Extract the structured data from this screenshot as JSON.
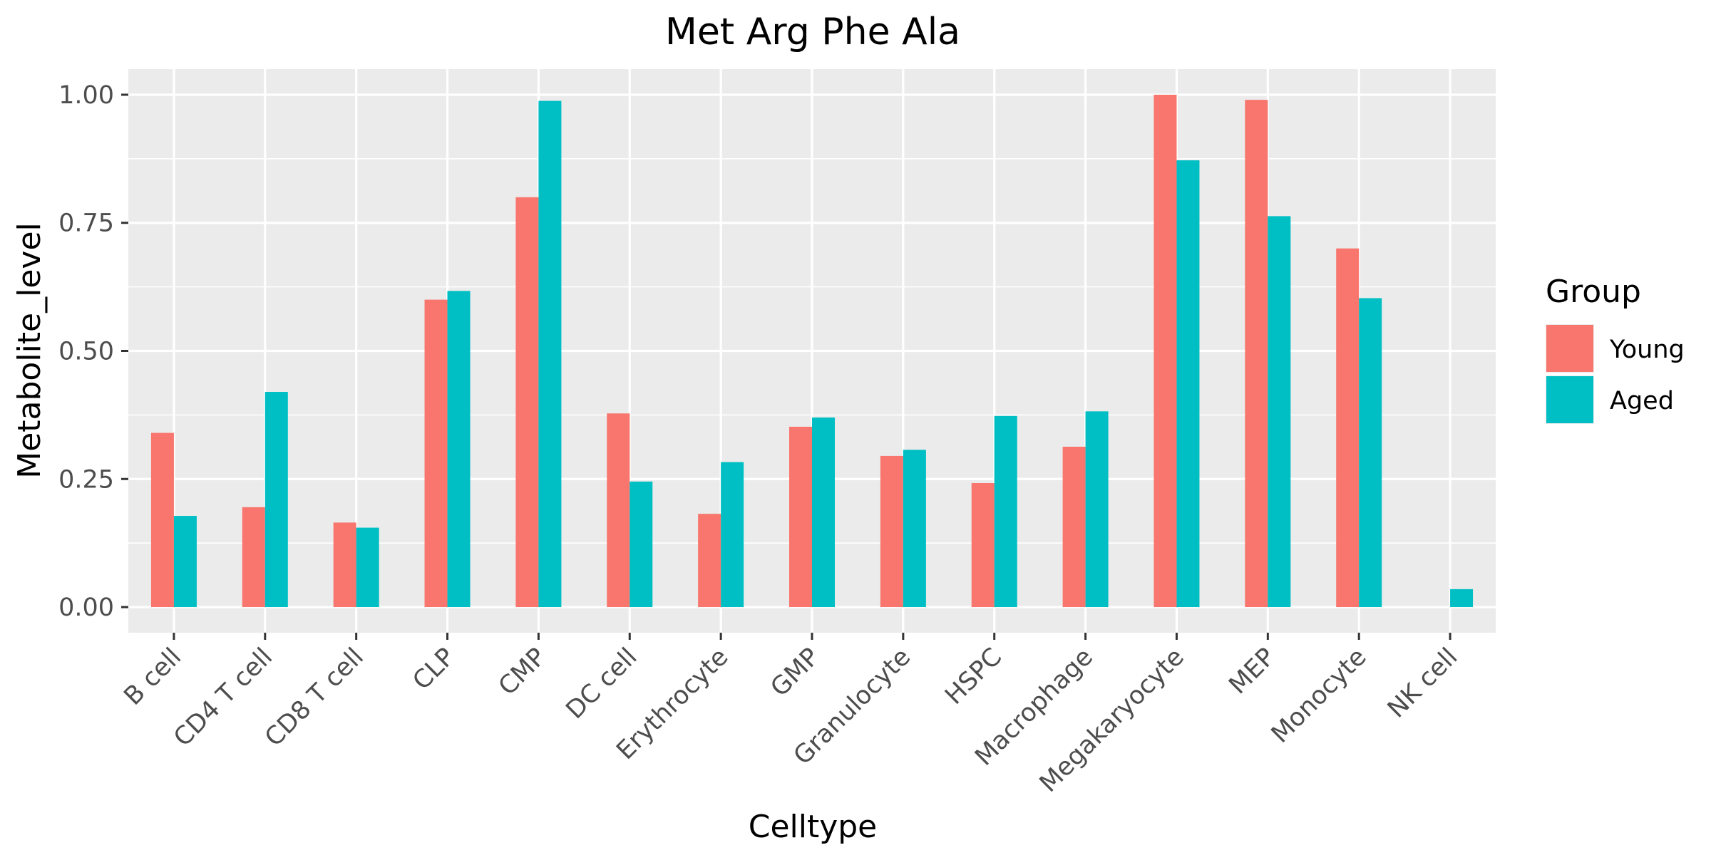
{
  "chart_data": {
    "type": "bar",
    "title": "Met Arg Phe Ala",
    "xlabel": "Celltype",
    "ylabel": "Metabolite_level",
    "ylim": [
      -0.05,
      1.05
    ],
    "yticks": [
      0.0,
      0.25,
      0.5,
      0.75,
      1.0
    ],
    "ytick_labels": [
      "0.00",
      "0.25",
      "0.50",
      "0.75",
      "1.00"
    ],
    "categories": [
      "B cell",
      "CD4 T cell",
      "CD8 T cell",
      "CLP",
      "CMP",
      "DC cell",
      "Erythrocyte",
      "GMP",
      "Granulocyte",
      "HSPC",
      "Macrophage",
      "Megakaryocyte",
      "MEP",
      "Monocyte",
      "NK cell"
    ],
    "series": [
      {
        "name": "Young",
        "color": "#F8766D",
        "values": [
          0.34,
          0.195,
          0.165,
          0.6,
          0.8,
          0.378,
          0.182,
          0.352,
          0.295,
          0.242,
          0.313,
          1.0,
          0.99,
          0.7,
          null
        ]
      },
      {
        "name": "Aged",
        "color": "#00BFC4",
        "values": [
          0.178,
          0.42,
          0.155,
          0.617,
          0.988,
          0.245,
          0.283,
          0.37,
          0.307,
          0.373,
          0.382,
          0.872,
          0.763,
          0.603,
          0.035
        ]
      }
    ],
    "grid": true,
    "panel_background": "#EBEBEB",
    "legend": {
      "title": "Group",
      "position": "right"
    }
  }
}
